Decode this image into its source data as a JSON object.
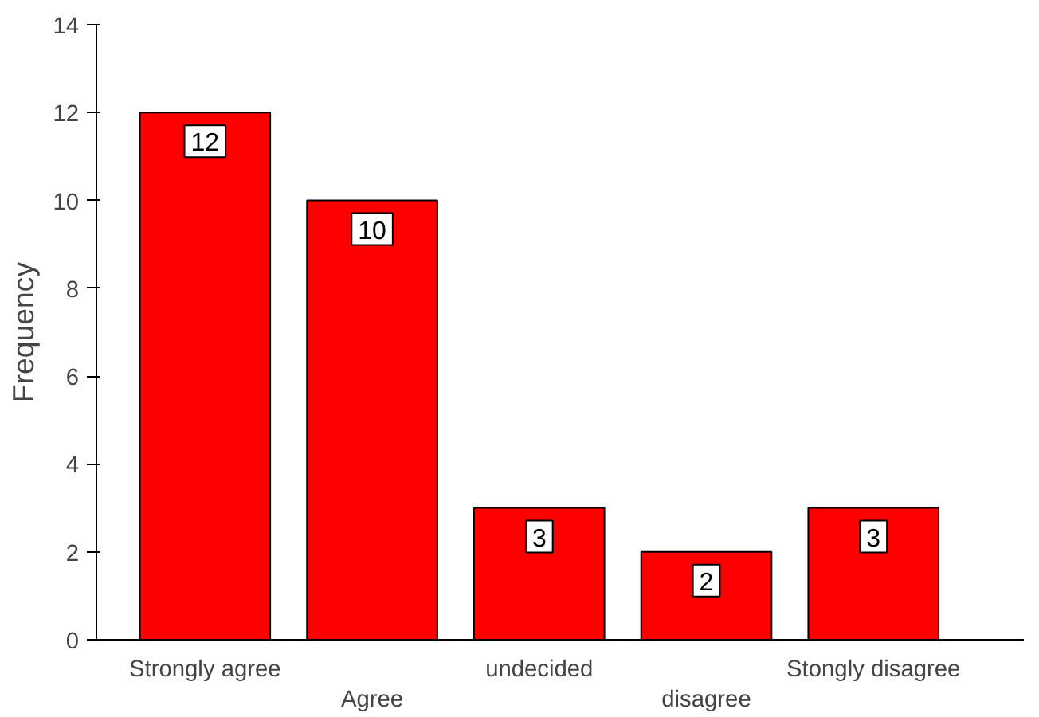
{
  "chart_data": {
    "type": "bar",
    "ylabel": "Frequency",
    "categories": [
      "Strongly agree",
      "Agree",
      "undecided",
      "disagree",
      "Stongly disagree"
    ],
    "values": [
      12,
      10,
      3,
      2,
      3
    ],
    "color": "#ff0000",
    "ylim": [
      0,
      14
    ],
    "yticks": [
      0,
      2,
      4,
      6,
      8,
      10,
      12,
      14
    ],
    "grid": false,
    "data_labels": true
  }
}
